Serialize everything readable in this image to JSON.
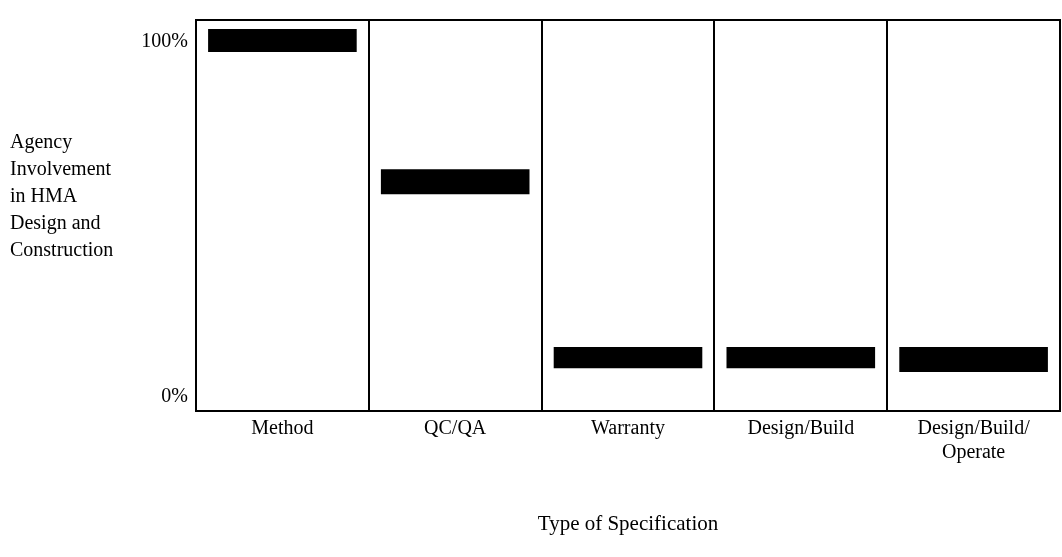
{
  "chart_data": {
    "type": "bar",
    "xlabel": "Type of Specification",
    "ylabel": "Agency\nInvolvement\nin HMA\nDesign and\nConstruction",
    "categories": [
      "Method",
      "QC/QA",
      "Warranty",
      "Design/Build",
      "Design/Build/\nOperate"
    ],
    "values": [
      6.5,
      7,
      6,
      6,
      7
    ],
    "base": [
      97,
      57,
      8,
      8,
      7
    ],
    "color": "#000000",
    "ylim": [
      -4,
      106
    ],
    "yticks": [
      {
        "value": 0,
        "label": "0%"
      },
      {
        "value": 100,
        "label": "100%"
      }
    ],
    "grid": "x",
    "legend": false
  }
}
